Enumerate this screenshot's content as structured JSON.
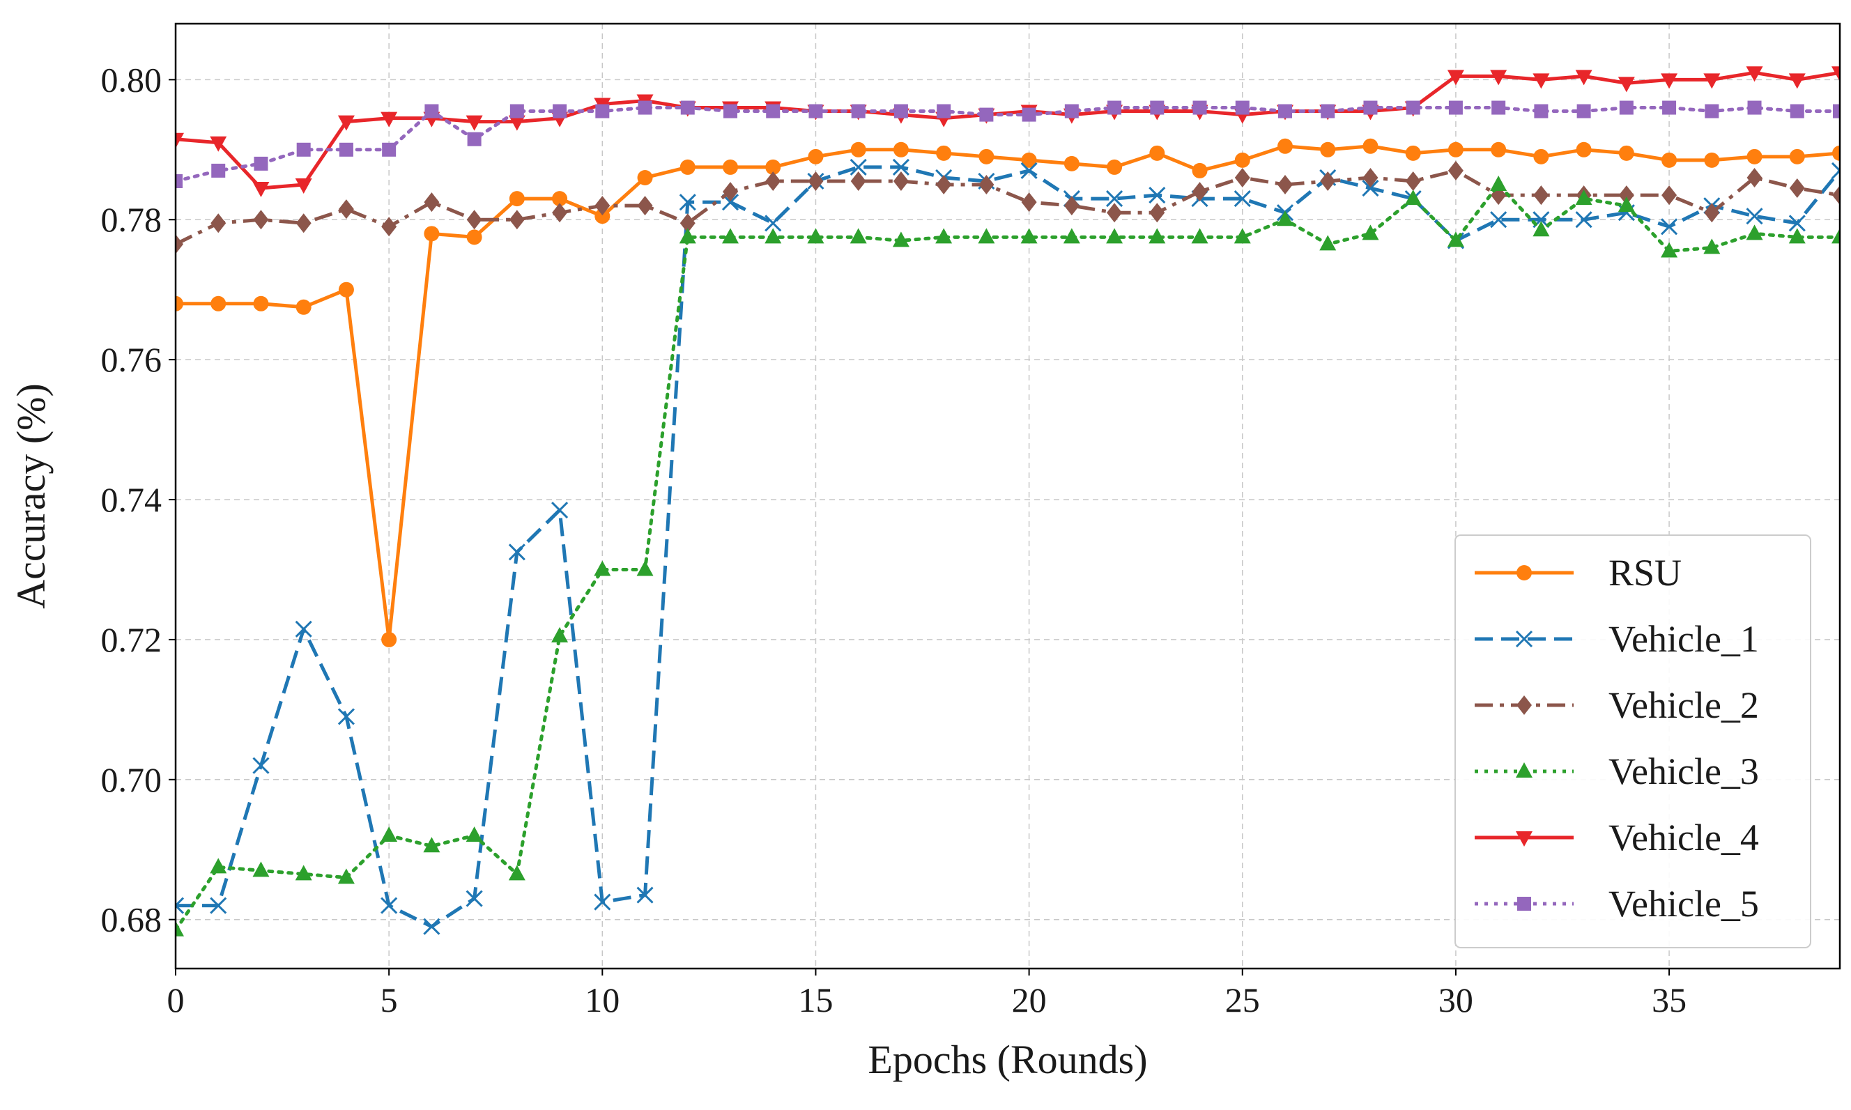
{
  "chart_data": {
    "type": "line",
    "title": "",
    "xlabel": "Epochs (Rounds)",
    "ylabel": "Accuracy (%)",
    "xlim": [
      0,
      39
    ],
    "ylim": [
      0.673,
      0.808
    ],
    "xticks": [
      0,
      5,
      10,
      15,
      20,
      25,
      30,
      35
    ],
    "yticks": [
      0.68,
      0.7,
      0.72,
      0.74,
      0.76,
      0.78,
      0.8
    ],
    "ytick_labels": [
      "0.68",
      "0.70",
      "0.72",
      "0.74",
      "0.76",
      "0.78",
      "0.80"
    ],
    "grid": true,
    "legend_position": "lower-right",
    "x": [
      0,
      1,
      2,
      3,
      4,
      5,
      6,
      7,
      8,
      9,
      10,
      11,
      12,
      13,
      14,
      15,
      16,
      17,
      18,
      19,
      20,
      21,
      22,
      23,
      24,
      25,
      26,
      27,
      28,
      29,
      30,
      31,
      32,
      33,
      34,
      35,
      36,
      37,
      38,
      39
    ],
    "series": [
      {
        "name": "RSU",
        "color": "#ff7f0e",
        "line_style": "solid",
        "marker": "circle",
        "values": [
          0.768,
          0.768,
          0.768,
          0.7675,
          0.77,
          0.72,
          0.778,
          0.7775,
          0.783,
          0.783,
          0.7805,
          0.786,
          0.7875,
          0.7875,
          0.7875,
          0.789,
          0.79,
          0.79,
          0.7895,
          0.789,
          0.7885,
          0.788,
          0.7875,
          0.7895,
          0.787,
          0.7885,
          0.7905,
          0.79,
          0.7905,
          0.7895,
          0.79,
          0.79,
          0.789,
          0.79,
          0.7895,
          0.7885,
          0.7885,
          0.789,
          0.789,
          0.7895
        ]
      },
      {
        "name": "Vehicle_1",
        "color": "#1f77b4",
        "line_style": "dashed",
        "marker": "x",
        "values": [
          0.682,
          0.682,
          0.702,
          0.7215,
          0.709,
          0.682,
          0.679,
          0.683,
          0.7325,
          0.7385,
          0.6825,
          0.6835,
          0.7825,
          0.7825,
          0.7795,
          0.7855,
          0.7875,
          0.7875,
          0.786,
          0.7855,
          0.787,
          0.783,
          0.783,
          0.7835,
          0.783,
          0.783,
          0.781,
          0.786,
          0.7845,
          0.783,
          0.777,
          0.78,
          0.78,
          0.78,
          0.781,
          0.779,
          0.782,
          0.7805,
          0.7795,
          0.787
        ]
      },
      {
        "name": "Vehicle_2",
        "color": "#8c564b",
        "line_style": "dashdot",
        "marker": "diamond",
        "values": [
          0.7765,
          0.7795,
          0.78,
          0.7795,
          0.7815,
          0.779,
          0.7825,
          0.78,
          0.78,
          0.781,
          0.782,
          0.782,
          0.7795,
          0.784,
          0.7855,
          0.7855,
          0.7855,
          0.7855,
          0.785,
          0.785,
          0.7825,
          0.782,
          0.781,
          0.781,
          0.784,
          0.786,
          0.785,
          0.7855,
          0.786,
          0.7855,
          0.787,
          0.7835,
          0.7835,
          0.7835,
          0.7835,
          0.7835,
          0.781,
          0.786,
          0.7845,
          0.7835
        ]
      },
      {
        "name": "Vehicle_3",
        "color": "#2ca02c",
        "line_style": "dotted",
        "marker": "triangle-up",
        "values": [
          0.6785,
          0.6875,
          0.687,
          0.6865,
          0.686,
          0.692,
          0.6905,
          0.692,
          0.6865,
          0.7205,
          0.73,
          0.73,
          0.7775,
          0.7775,
          0.7775,
          0.7775,
          0.7775,
          0.777,
          0.7775,
          0.7775,
          0.7775,
          0.7775,
          0.7775,
          0.7775,
          0.7775,
          0.7775,
          0.78,
          0.7765,
          0.778,
          0.783,
          0.777,
          0.785,
          0.7785,
          0.783,
          0.782,
          0.7755,
          0.776,
          0.778,
          0.7775,
          0.7775
        ]
      },
      {
        "name": "Vehicle_4",
        "color": "#e8262a",
        "line_style": "solid",
        "marker": "triangle-down",
        "values": [
          0.7915,
          0.791,
          0.7845,
          0.785,
          0.794,
          0.7945,
          0.7945,
          0.794,
          0.794,
          0.7945,
          0.7965,
          0.797,
          0.796,
          0.796,
          0.796,
          0.7955,
          0.7955,
          0.795,
          0.7945,
          0.795,
          0.7955,
          0.795,
          0.7955,
          0.7955,
          0.7955,
          0.795,
          0.7955,
          0.7955,
          0.7955,
          0.796,
          0.8005,
          0.8005,
          0.8,
          0.8005,
          0.7995,
          0.8,
          0.8,
          0.801,
          0.8,
          0.801
        ]
      },
      {
        "name": "Vehicle_5",
        "color": "#9467bd",
        "line_style": "dotted",
        "marker": "square",
        "values": [
          0.7855,
          0.787,
          0.788,
          0.79,
          0.79,
          0.79,
          0.7955,
          0.7915,
          0.7955,
          0.7955,
          0.7955,
          0.796,
          0.796,
          0.7955,
          0.7955,
          0.7955,
          0.7955,
          0.7955,
          0.7955,
          0.795,
          0.795,
          0.7955,
          0.796,
          0.796,
          0.796,
          0.796,
          0.7955,
          0.7955,
          0.796,
          0.796,
          0.796,
          0.796,
          0.7955,
          0.7955,
          0.796,
          0.796,
          0.7955,
          0.796,
          0.7955,
          0.7955
        ]
      }
    ]
  }
}
